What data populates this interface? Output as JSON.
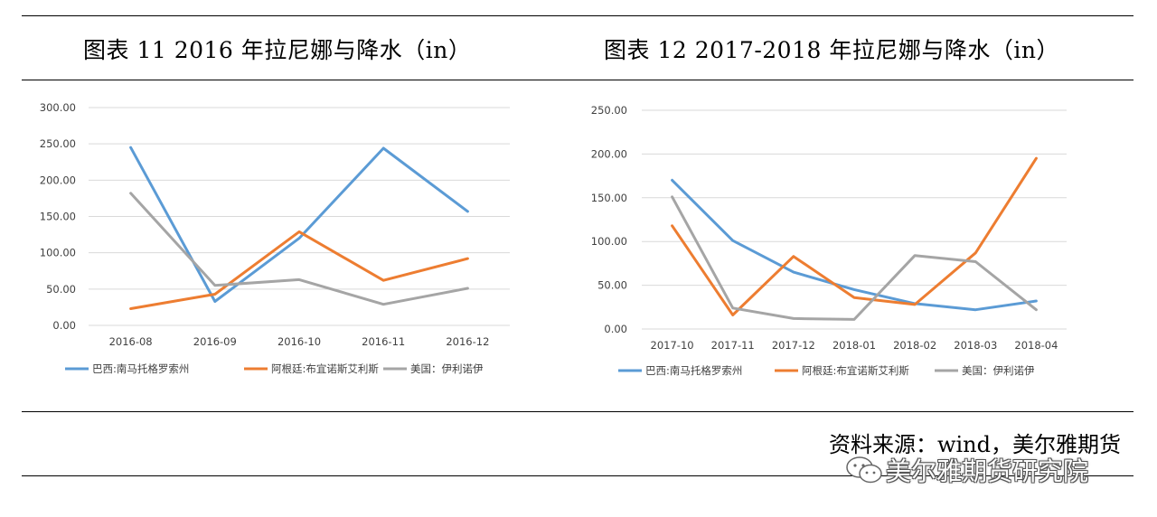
{
  "titles": {
    "left": "图表 11 2016 年拉尼娜与降水（in）",
    "right": "图表 12 2017-2018 年拉尼娜与降水（in）"
  },
  "source": "资料来源：wind，美尔雅期货",
  "watermark": {
    "text": "美尔雅期货研究院",
    "icon": "wechat-icon"
  },
  "colors": {
    "blue": "#5B9BD5",
    "orange": "#ED7D31",
    "gray": "#A5A5A5"
  },
  "chart_data": [
    {
      "type": "line",
      "categories": [
        "2016-08",
        "2016-09",
        "2016-10",
        "2016-11",
        "2016-12"
      ],
      "ylim": [
        0,
        300
      ],
      "yticks": [
        "0.00",
        "50.00",
        "100.00",
        "150.00",
        "200.00",
        "250.00",
        "300.00"
      ],
      "grid": true,
      "legend_position": "bottom",
      "series": [
        {
          "name": "巴西:南马托格罗索州",
          "color": "#5B9BD5",
          "values": [
            245,
            33,
            120,
            244,
            157
          ]
        },
        {
          "name": "阿根廷:布宜诺斯艾利斯",
          "color": "#ED7D31",
          "values": [
            23,
            43,
            129,
            62,
            92
          ]
        },
        {
          "name": "美国：伊利诺伊",
          "color": "#A5A5A5",
          "values": [
            182,
            55,
            63,
            29,
            51
          ]
        }
      ]
    },
    {
      "type": "line",
      "categories": [
        "2017-10",
        "2017-11",
        "2017-12",
        "2018-01",
        "2018-02",
        "2018-03",
        "2018-04"
      ],
      "ylim": [
        0,
        250
      ],
      "yticks": [
        "0.00",
        "50.00",
        "100.00",
        "150.00",
        "200.00",
        "250.00"
      ],
      "grid": true,
      "legend_position": "bottom",
      "series": [
        {
          "name": "巴西:南马托格罗索州",
          "color": "#5B9BD5",
          "values": [
            170,
            101,
            65,
            45,
            29,
            22,
            32
          ]
        },
        {
          "name": "阿根廷:布宜诺斯艾利斯",
          "color": "#ED7D31",
          "values": [
            118,
            16,
            83,
            36,
            28,
            87,
            195
          ]
        },
        {
          "name": "美国：伊利诺伊",
          "color": "#A5A5A5",
          "values": [
            151,
            24,
            12,
            11,
            84,
            77,
            22
          ]
        }
      ]
    }
  ]
}
